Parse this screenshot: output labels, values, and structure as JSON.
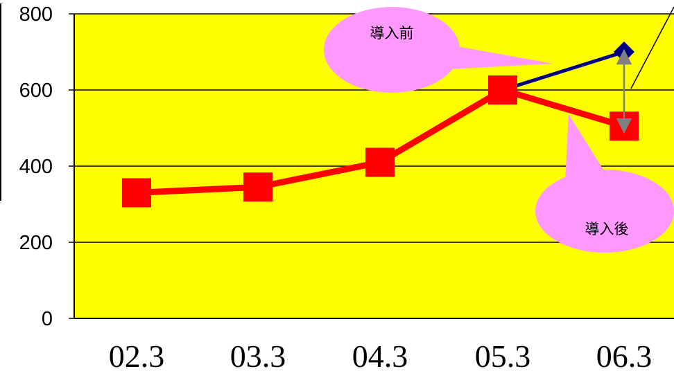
{
  "chart_data": {
    "type": "line",
    "title": "",
    "xlabel": "",
    "ylabel": "",
    "categories": [
      "02.3",
      "03.3",
      "04.3",
      "05.3",
      "06.3"
    ],
    "ylim": [
      0,
      800
    ],
    "yticks": [
      "0",
      "200",
      "400",
      "600",
      "800"
    ],
    "grid": true,
    "series": [
      {
        "values": [
          null,
          null,
          null,
          600,
          700
        ],
        "color": "#000080",
        "marker": "diamond"
      },
      {
        "values": [
          330,
          345,
          410,
          600,
          505
        ],
        "color": "#ff0000",
        "marker": "square"
      }
    ],
    "annotations": [
      {
        "text": "導入前"
      },
      {
        "text": "導入後"
      }
    ],
    "colors": {
      "plot_background": "#ffff00",
      "callout_fill": "#ff99ff",
      "difference_arrow": "#808080"
    }
  }
}
